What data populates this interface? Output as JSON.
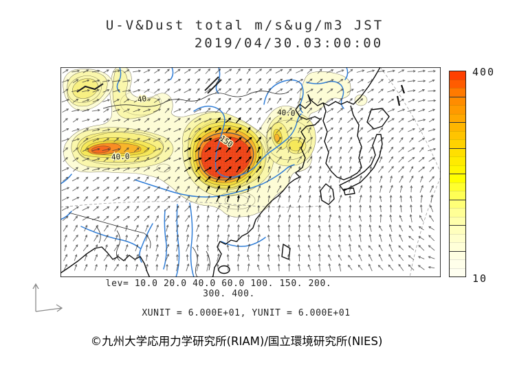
{
  "title": {
    "line1": "U-V&Dust total m/s&ug/m3 JST",
    "line2": "2019/04/30.03:00:00"
  },
  "colorbar": {
    "max_label": "400",
    "min_label": "10",
    "colors_top_to_bottom": [
      "#FF4000",
      "#FF5C00",
      "#FF7A00",
      "#FF8C00",
      "#FF9A00",
      "#FFA800",
      "#FFB600",
      "#FFC400",
      "#FFD200",
      "#FFDF00",
      "#FFEB00",
      "#FFF600",
      "#FFFF00",
      "#FFFF2E",
      "#FFFF55",
      "#FFFF77",
      "#FFFF96",
      "#FFFFAC",
      "#FFFFBE",
      "#FFFFCC",
      "#FFFFD8",
      "#FFFFE2",
      "#FFFFEA",
      "#FFFFF0"
    ]
  },
  "footer": {
    "lev_line1": "lev= 10.0 20.0 40.0 60.0 100. 150. 200.",
    "lev_line2": "300. 400.",
    "unit_line": "XUNIT = 6.000E+01, YUNIT = 6.000E+01",
    "copyright": "©九州大学応用力学研究所(RIAM)/国立環境研究所(NIES)"
  },
  "map": {
    "contour_labels": [
      {
        "text": "40.0"
      },
      {
        "text": "150"
      },
      {
        "text": "40.0"
      },
      {
        "text": "40"
      }
    ]
  },
  "chart_data": {
    "type": "heatmap",
    "title": "U-V&Dust total m/s&ug/m3 JST",
    "timestamp": "2019/04/30.03:00:00",
    "variables": {
      "fill": "Dust total concentration (ug/m3)",
      "vectors": "U-V wind (m/s)"
    },
    "contour_levels": [
      10,
      20,
      40,
      60,
      100,
      150,
      200,
      300,
      400
    ],
    "colorbar_range": [
      10,
      400
    ],
    "xunit": "6.000E+01",
    "yunit": "6.000E+01",
    "region": "East Asia (China, Mongolia, Korea, Japan, Indochina)",
    "legend_position": "right",
    "grid": false,
    "dust_maxima": [
      {
        "location": "central China / Loess Plateau",
        "peak_level": ">=200",
        "approx_frac_x": 0.44,
        "approx_frac_y": 0.44
      },
      {
        "location": "western basin (left lobe)",
        "peak_level": ">=100",
        "approx_frac_x": 0.12,
        "approx_frac_y": 0.4
      },
      {
        "location": "northeast China",
        "peak_level": ">=60",
        "approx_frac_x": 0.6,
        "approx_frac_y": 0.36
      },
      {
        "location": "northwest corner blob",
        "peak_level": ">=40",
        "approx_frac_x": 0.07,
        "approx_frac_y": 0.1
      }
    ],
    "contour_labels_on_map": [
      "40.0",
      "150",
      "40.0",
      "40"
    ]
  }
}
